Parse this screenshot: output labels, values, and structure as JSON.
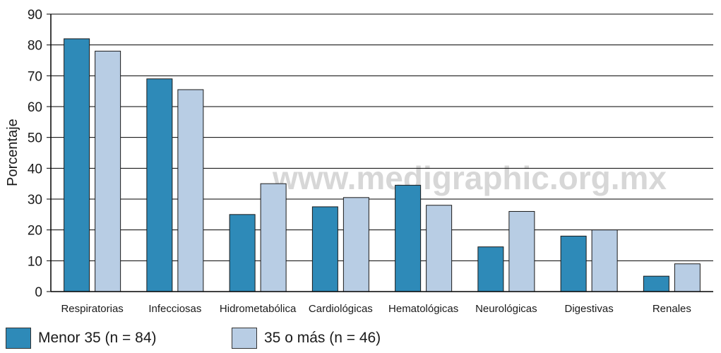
{
  "chart_data": {
    "type": "bar",
    "ylabel": "Porcentaje",
    "ylim": [
      0,
      90
    ],
    "yticks": [
      0,
      10,
      20,
      30,
      40,
      50,
      60,
      70,
      80,
      90
    ],
    "grid": true,
    "legend_position": "bottom-left",
    "watermark": "www.medigraphic.org.mx",
    "categories": [
      "Respiratorias",
      "Infecciosas",
      "Hidrometabólica",
      "Cardiológicas",
      "Hematológicas",
      "Neurológicas",
      "Digestivas",
      "Renales"
    ],
    "series": [
      {
        "name": "Menor 35 (n = 84)",
        "color": "#2e8ab8",
        "values": [
          82,
          69,
          25,
          27.5,
          34.5,
          14.5,
          18,
          5
        ]
      },
      {
        "name": "35 o más (n = 46)",
        "color": "#b8cde4",
        "values": [
          78,
          65.5,
          35,
          30.5,
          28,
          26,
          20,
          9
        ]
      }
    ]
  }
}
